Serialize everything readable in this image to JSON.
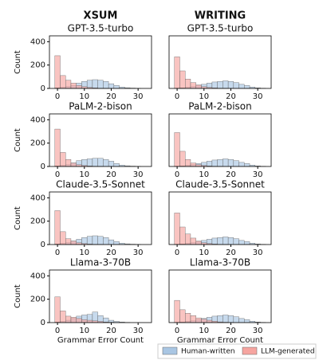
{
  "columns": [
    "XSUM",
    "WRITING"
  ],
  "legend": [
    {
      "name": "Human-written",
      "color": "#a9c6e3"
    },
    {
      "name": "LLM-generated",
      "color": "#f6a5a0"
    }
  ],
  "chart_data": [
    {
      "type": "histogram",
      "title": "GPT-3.5-turbo",
      "ylabel": "Count",
      "bins": [
        -1,
        1,
        3,
        5,
        7,
        9,
        11,
        13,
        15,
        17,
        19,
        21,
        23,
        25,
        27,
        29,
        31,
        33,
        35
      ],
      "xlim": [
        -3,
        35
      ],
      "xticks": [
        0,
        10,
        20,
        30
      ],
      "ylim": [
        0,
        450
      ],
      "yticks": [
        0,
        200,
        400
      ],
      "series": [
        {
          "values": [
            5,
            10,
            15,
            25,
            45,
            60,
            70,
            75,
            70,
            60,
            40,
            25,
            12,
            6,
            3,
            1,
            0,
            0
          ]
        },
        {
          "values": [
            280,
            110,
            70,
            45,
            25,
            15,
            8,
            4,
            2,
            1,
            0,
            0,
            0,
            0,
            0,
            0,
            0,
            0
          ]
        }
      ]
    },
    {
      "type": "histogram",
      "title": "GPT-3.5-turbo",
      "bins": [
        -1,
        1,
        3,
        5,
        7,
        9,
        11,
        13,
        15,
        17,
        19,
        21,
        23,
        25,
        27,
        29,
        31,
        33,
        35
      ],
      "xlim": [
        -3,
        35
      ],
      "xticks": [
        0,
        10,
        20,
        30
      ],
      "ylim": [
        0,
        450
      ],
      "series": [
        {
          "values": [
            2,
            5,
            10,
            15,
            25,
            35,
            45,
            55,
            60,
            65,
            60,
            50,
            35,
            25,
            12,
            5,
            2,
            0
          ]
        },
        {
          "values": [
            270,
            150,
            80,
            50,
            30,
            15,
            8,
            4,
            2,
            1,
            0,
            0,
            0,
            0,
            0,
            0,
            0,
            0
          ]
        }
      ]
    },
    {
      "type": "histogram",
      "title": "PaLM-2-bison",
      "ylabel": "Count",
      "bins": [
        -1,
        1,
        3,
        5,
        7,
        9,
        11,
        13,
        15,
        17,
        19,
        21,
        23,
        25,
        27,
        29,
        31,
        33,
        35
      ],
      "xlim": [
        -3,
        35
      ],
      "xticks": [
        0,
        10,
        20,
        30
      ],
      "ylim": [
        0,
        450
      ],
      "yticks": [
        0,
        200,
        400
      ],
      "series": [
        {
          "values": [
            5,
            10,
            15,
            30,
            50,
            60,
            65,
            70,
            70,
            60,
            45,
            25,
            12,
            6,
            3,
            1,
            0,
            0
          ]
        },
        {
          "values": [
            320,
            120,
            60,
            30,
            15,
            8,
            4,
            2,
            1,
            0,
            0,
            0,
            0,
            0,
            0,
            0,
            0,
            0
          ]
        }
      ]
    },
    {
      "type": "histogram",
      "title": "PaLM-2-bison",
      "bins": [
        -1,
        1,
        3,
        5,
        7,
        9,
        11,
        13,
        15,
        17,
        19,
        21,
        23,
        25,
        27,
        29,
        31,
        33,
        35
      ],
      "xlim": [
        -3,
        35
      ],
      "xticks": [
        0,
        10,
        20,
        30
      ],
      "ylim": [
        0,
        450
      ],
      "series": [
        {
          "values": [
            2,
            5,
            10,
            15,
            25,
            35,
            45,
            55,
            60,
            65,
            60,
            50,
            35,
            25,
            12,
            5,
            2,
            0
          ]
        },
        {
          "values": [
            290,
            130,
            60,
            30,
            15,
            8,
            4,
            2,
            1,
            0,
            0,
            0,
            0,
            0,
            0,
            0,
            0,
            0
          ]
        }
      ]
    },
    {
      "type": "histogram",
      "title": "Claude-3.5-Sonnet",
      "ylabel": "Count",
      "bins": [
        -1,
        1,
        3,
        5,
        7,
        9,
        11,
        13,
        15,
        17,
        19,
        21,
        23,
        25,
        27,
        29,
        31,
        33,
        35
      ],
      "xlim": [
        -3,
        35
      ],
      "xticks": [
        0,
        10,
        20,
        30
      ],
      "ylim": [
        0,
        450
      ],
      "yticks": [
        0,
        200,
        400
      ],
      "series": [
        {
          "values": [
            5,
            10,
            15,
            30,
            45,
            60,
            70,
            75,
            70,
            60,
            40,
            25,
            12,
            6,
            3,
            1,
            0,
            0
          ]
        },
        {
          "values": [
            290,
            110,
            50,
            30,
            15,
            8,
            4,
            2,
            1,
            0,
            0,
            0,
            0,
            0,
            0,
            0,
            0,
            0
          ]
        }
      ]
    },
    {
      "type": "histogram",
      "title": "Claude-3.5-Sonnet",
      "bins": [
        -1,
        1,
        3,
        5,
        7,
        9,
        11,
        13,
        15,
        17,
        19,
        21,
        23,
        25,
        27,
        29,
        31,
        33,
        35
      ],
      "xlim": [
        -3,
        35
      ],
      "xticks": [
        0,
        10,
        20,
        30
      ],
      "ylim": [
        0,
        450
      ],
      "series": [
        {
          "values": [
            2,
            5,
            10,
            15,
            25,
            35,
            45,
            55,
            60,
            65,
            60,
            50,
            35,
            25,
            12,
            5,
            2,
            0
          ]
        },
        {
          "values": [
            270,
            150,
            90,
            55,
            30,
            15,
            8,
            4,
            2,
            1,
            0,
            0,
            0,
            0,
            0,
            0,
            0,
            0
          ]
        }
      ]
    },
    {
      "type": "histogram",
      "title": "Llama-3-70B",
      "ylabel": "Count",
      "xlabel": "Grammar Error Count",
      "bins": [
        -1,
        1,
        3,
        5,
        7,
        9,
        11,
        13,
        15,
        17,
        19,
        21,
        23,
        25,
        27,
        29,
        31,
        33,
        35
      ],
      "xlim": [
        -3,
        35
      ],
      "xticks": [
        0,
        10,
        20,
        30
      ],
      "ylim": [
        0,
        450
      ],
      "yticks": [
        0,
        200,
        400
      ],
      "series": [
        {
          "values": [
            5,
            10,
            20,
            35,
            55,
            65,
            70,
            90,
            60,
            40,
            20,
            10,
            5,
            2,
            0,
            0,
            0,
            0
          ]
        },
        {
          "values": [
            220,
            100,
            55,
            45,
            35,
            25,
            20,
            15,
            10,
            5,
            3,
            1,
            0,
            0,
            0,
            0,
            0,
            0
          ]
        }
      ]
    },
    {
      "type": "histogram",
      "title": "Llama-3-70B",
      "xlabel": "Grammar Error Count",
      "bins": [
        -1,
        1,
        3,
        5,
        7,
        9,
        11,
        13,
        15,
        17,
        19,
        21,
        23,
        25,
        27,
        29,
        31,
        33,
        35
      ],
      "xlim": [
        -3,
        35
      ],
      "xticks": [
        0,
        10,
        20,
        30
      ],
      "ylim": [
        0,
        450
      ],
      "series": [
        {
          "values": [
            2,
            5,
            10,
            15,
            25,
            35,
            45,
            55,
            60,
            65,
            60,
            50,
            35,
            25,
            12,
            5,
            2,
            0
          ]
        },
        {
          "values": [
            190,
            110,
            80,
            60,
            40,
            30,
            20,
            12,
            6,
            3,
            1,
            0,
            0,
            0,
            0,
            0,
            0,
            0
          ]
        }
      ]
    }
  ]
}
